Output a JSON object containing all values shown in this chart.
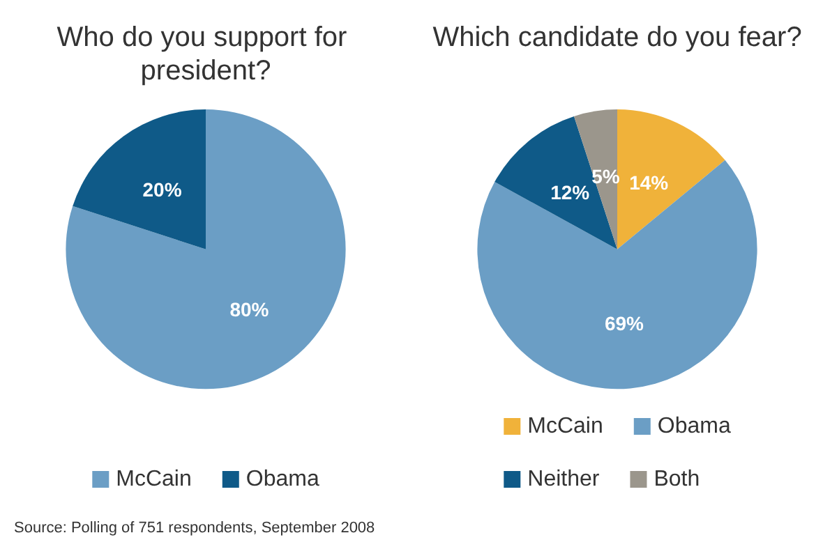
{
  "chart_data": [
    {
      "type": "pie",
      "title": "Who do you support for president?",
      "categories": [
        "McCain",
        "Obama"
      ],
      "values": [
        80,
        20
      ],
      "colors": [
        "#6b9ec5",
        "#0f5a88"
      ],
      "value_labels": [
        "80%",
        "20%"
      ],
      "legend": "bottom",
      "annotations": [
        "Source: Polling of 751 respondents, September 2008"
      ]
    },
    {
      "type": "pie",
      "title": "Which candidate do you fear?",
      "categories": [
        "McCain",
        "Obama",
        "Neither",
        "Both"
      ],
      "values": [
        14,
        69,
        12,
        5
      ],
      "colors": [
        "#f0b23a",
        "#6b9ec5",
        "#0f5a88",
        "#9b968c"
      ],
      "value_labels": [
        "14%",
        "69%",
        "12%",
        "5%"
      ],
      "legend": "bottom"
    }
  ]
}
